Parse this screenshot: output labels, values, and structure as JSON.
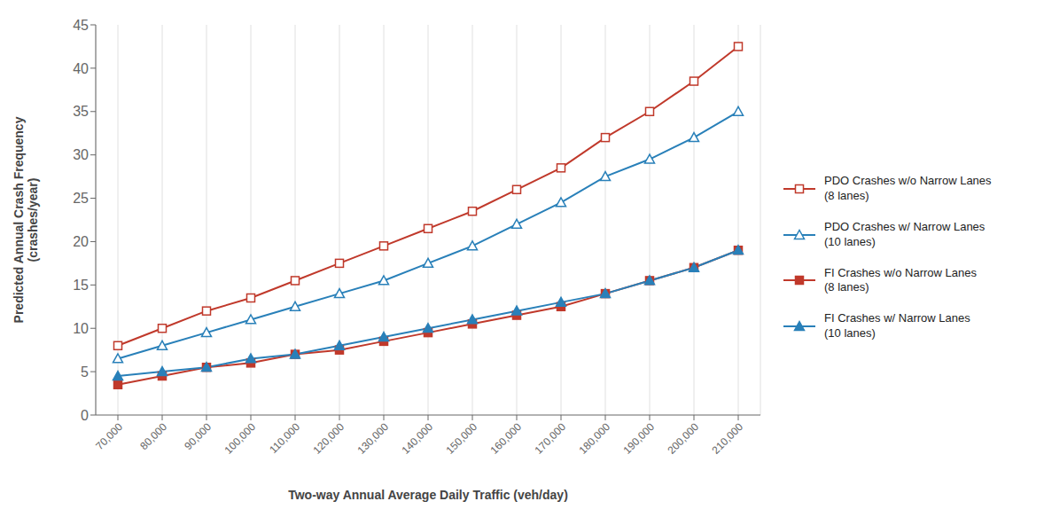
{
  "chart_data": {
    "type": "line",
    "xlabel": "Two-way Annual Average Daily Traffic (veh/day)",
    "ylabel": "Predicted Annual Crash Frequency\n(crashes/year)",
    "x": [
      70000,
      80000,
      90000,
      100000,
      110000,
      120000,
      130000,
      140000,
      150000,
      160000,
      170000,
      180000,
      190000,
      200000,
      210000
    ],
    "xlim": [
      65000,
      215000
    ],
    "xticks": [
      {
        "value": 70000,
        "label": "70,000"
      },
      {
        "value": 80000,
        "label": "80,000"
      },
      {
        "value": 90000,
        "label": "90,000"
      },
      {
        "value": 100000,
        "label": "100,000"
      },
      {
        "value": 110000,
        "label": "110,000"
      },
      {
        "value": 120000,
        "label": "120,000"
      },
      {
        "value": 130000,
        "label": "130,000"
      },
      {
        "value": 140000,
        "label": "140,000"
      },
      {
        "value": 150000,
        "label": "150,000"
      },
      {
        "value": 160000,
        "label": "160,000"
      },
      {
        "value": 170000,
        "label": "170,000"
      },
      {
        "value": 180000,
        "label": "180,000"
      },
      {
        "value": 190000,
        "label": "190,000"
      },
      {
        "value": 200000,
        "label": "200,000"
      },
      {
        "value": 210000,
        "label": "210,000"
      }
    ],
    "ylim": [
      0,
      45
    ],
    "yticks": [
      0,
      5,
      10,
      15,
      20,
      25,
      30,
      35,
      40,
      45
    ],
    "grid": "x",
    "legend": "right",
    "series": [
      {
        "name": "PDO Crashes w/o Narrow Lanes\n(8 lanes)",
        "color": "#c0392b",
        "marker": "square_open",
        "values": [
          8.0,
          10.0,
          12.0,
          13.5,
          15.5,
          17.5,
          19.5,
          21.5,
          23.5,
          26.0,
          28.5,
          32.0,
          35.0,
          38.5,
          42.5
        ]
      },
      {
        "name": "PDO Crashes w/ Narrow Lanes\n(10 lanes)",
        "color": "#2980b9",
        "marker": "triangle_open",
        "values": [
          6.5,
          8.0,
          9.5,
          11.0,
          12.5,
          14.0,
          15.5,
          17.5,
          19.5,
          22.0,
          24.5,
          27.5,
          29.5,
          32.0,
          35.0
        ]
      },
      {
        "name": "FI Crashes w/o Narrow Lanes\n(8 lanes)",
        "color": "#c0392b",
        "marker": "square",
        "values": [
          3.5,
          4.5,
          5.5,
          6.0,
          7.0,
          7.5,
          8.5,
          9.5,
          10.5,
          11.5,
          12.5,
          14.0,
          15.5,
          17.0,
          19.0
        ]
      },
      {
        "name": "FI Crashes w/ Narrow Lanes\n(10 lanes)",
        "color": "#2980b9",
        "marker": "triangle",
        "values": [
          4.5,
          5.0,
          5.5,
          6.5,
          7.0,
          8.0,
          9.0,
          10.0,
          11.0,
          12.0,
          13.0,
          14.0,
          15.5,
          17.0,
          19.0
        ]
      }
    ]
  }
}
